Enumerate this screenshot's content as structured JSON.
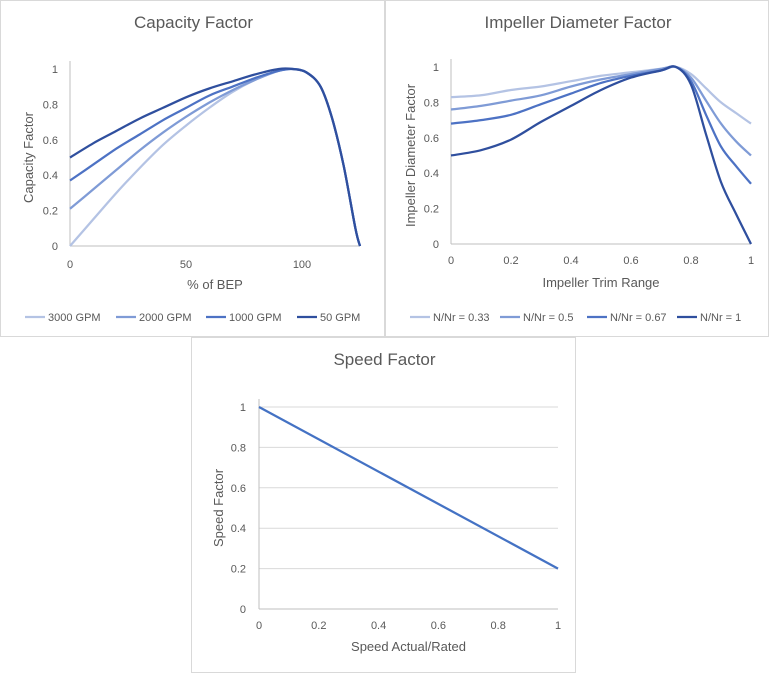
{
  "chart_data": [
    {
      "id": "capacity",
      "type": "line",
      "title": "Capacity Factor",
      "xlabel": "% of BEP",
      "ylabel": "Capacity Factor",
      "xlim": [
        0,
        125
      ],
      "ylim": [
        0,
        1
      ],
      "x_ticks": [
        0,
        50,
        100
      ],
      "y_ticks": [
        0,
        0.2,
        0.4,
        0.6,
        0.8,
        1
      ],
      "y_tick_labels": [
        "0",
        "0.2",
        "0.4",
        "0.6",
        "0.8",
        "1"
      ],
      "x_tick_labels": [
        "0",
        "50",
        "100"
      ],
      "grid": false,
      "legend": "bottom",
      "series": [
        {
          "name": "3000 GPM",
          "color": "#b4c3e4",
          "points": [
            [
              0,
              0
            ],
            [
              10,
              0.15
            ],
            [
              20,
              0.3
            ],
            [
              30,
              0.44
            ],
            [
              40,
              0.57
            ],
            [
              50,
              0.68
            ],
            [
              60,
              0.78
            ],
            [
              70,
              0.87
            ],
            [
              80,
              0.94
            ],
            [
              90,
              0.99
            ],
            [
              96,
              1.0
            ],
            [
              102,
              0.98
            ],
            [
              108,
              0.9
            ],
            [
              113,
              0.72
            ],
            [
              118,
              0.45
            ],
            [
              123,
              0.1
            ],
            [
              125,
              0
            ]
          ]
        },
        {
          "name": "2000 GPM",
          "color": "#7f9bd6",
          "points": [
            [
              0,
              0.21
            ],
            [
              10,
              0.32
            ],
            [
              20,
              0.43
            ],
            [
              30,
              0.54
            ],
            [
              40,
              0.64
            ],
            [
              50,
              0.73
            ],
            [
              60,
              0.81
            ],
            [
              70,
              0.88
            ],
            [
              80,
              0.94
            ],
            [
              90,
              0.99
            ],
            [
              96,
              1.0
            ],
            [
              102,
              0.98
            ],
            [
              108,
              0.9
            ],
            [
              113,
              0.72
            ],
            [
              118,
              0.45
            ],
            [
              123,
              0.1
            ],
            [
              125,
              0
            ]
          ]
        },
        {
          "name": "1000 GPM",
          "color": "#4d72c4",
          "points": [
            [
              0,
              0.37
            ],
            [
              10,
              0.46
            ],
            [
              20,
              0.55
            ],
            [
              30,
              0.63
            ],
            [
              40,
              0.71
            ],
            [
              50,
              0.78
            ],
            [
              60,
              0.85
            ],
            [
              70,
              0.9
            ],
            [
              80,
              0.95
            ],
            [
              90,
              0.99
            ],
            [
              96,
              1.0
            ],
            [
              102,
              0.98
            ],
            [
              108,
              0.9
            ],
            [
              113,
              0.72
            ],
            [
              118,
              0.45
            ],
            [
              123,
              0.1
            ],
            [
              125,
              0
            ]
          ]
        },
        {
          "name": "50 GPM",
          "color": "#2f4f9e",
          "points": [
            [
              0,
              0.5
            ],
            [
              10,
              0.58
            ],
            [
              20,
              0.65
            ],
            [
              30,
              0.72
            ],
            [
              40,
              0.78
            ],
            [
              50,
              0.84
            ],
            [
              60,
              0.89
            ],
            [
              70,
              0.93
            ],
            [
              80,
              0.97
            ],
            [
              90,
              1.0
            ],
            [
              96,
              1.0
            ],
            [
              102,
              0.98
            ],
            [
              108,
              0.9
            ],
            [
              113,
              0.72
            ],
            [
              118,
              0.45
            ],
            [
              123,
              0.1
            ],
            [
              125,
              0
            ]
          ]
        }
      ]
    },
    {
      "id": "impeller",
      "type": "line",
      "title": "Impeller Diameter Factor",
      "xlabel": "Impeller Trim Range",
      "ylabel": "Impeller Diameter Factor",
      "xlim": [
        0,
        1
      ],
      "ylim": [
        0,
        1
      ],
      "x_ticks": [
        0,
        0.2,
        0.4,
        0.6,
        0.8,
        1
      ],
      "x_tick_labels": [
        "0",
        "0.2",
        "0.4",
        "0.6",
        "0.8",
        "1"
      ],
      "y_ticks": [
        0,
        0.2,
        0.4,
        0.6,
        0.8,
        1
      ],
      "y_tick_labels": [
        "0",
        "0.2",
        "0.4",
        "0.6",
        "0.8",
        "1"
      ],
      "grid": false,
      "legend": "bottom",
      "series": [
        {
          "name": "N/Nr = 0.33",
          "color": "#b4c3e4",
          "points": [
            [
              0,
              0.83
            ],
            [
              0.1,
              0.84
            ],
            [
              0.2,
              0.87
            ],
            [
              0.3,
              0.89
            ],
            [
              0.4,
              0.92
            ],
            [
              0.5,
              0.95
            ],
            [
              0.6,
              0.97
            ],
            [
              0.7,
              0.99
            ],
            [
              0.75,
              1.0
            ],
            [
              0.8,
              0.96
            ],
            [
              0.85,
              0.88
            ],
            [
              0.9,
              0.8
            ],
            [
              0.95,
              0.74
            ],
            [
              1,
              0.68
            ]
          ]
        },
        {
          "name": "N/Nr = 0.5",
          "color": "#7f9bd6",
          "points": [
            [
              0,
              0.76
            ],
            [
              0.1,
              0.78
            ],
            [
              0.2,
              0.81
            ],
            [
              0.3,
              0.84
            ],
            [
              0.4,
              0.89
            ],
            [
              0.5,
              0.93
            ],
            [
              0.6,
              0.96
            ],
            [
              0.7,
              0.99
            ],
            [
              0.75,
              1.0
            ],
            [
              0.8,
              0.94
            ],
            [
              0.85,
              0.81
            ],
            [
              0.9,
              0.68
            ],
            [
              0.95,
              0.58
            ],
            [
              1,
              0.5
            ]
          ]
        },
        {
          "name": "N/Nr = 0.67",
          "color": "#4d72c4",
          "points": [
            [
              0,
              0.68
            ],
            [
              0.1,
              0.7
            ],
            [
              0.2,
              0.73
            ],
            [
              0.3,
              0.79
            ],
            [
              0.4,
              0.85
            ],
            [
              0.5,
              0.91
            ],
            [
              0.6,
              0.95
            ],
            [
              0.7,
              0.98
            ],
            [
              0.75,
              1.0
            ],
            [
              0.8,
              0.92
            ],
            [
              0.85,
              0.73
            ],
            [
              0.9,
              0.55
            ],
            [
              0.95,
              0.44
            ],
            [
              1,
              0.34
            ]
          ]
        },
        {
          "name": "N/Nr = 1",
          "color": "#2f4f9e",
          "points": [
            [
              0,
              0.5
            ],
            [
              0.1,
              0.53
            ],
            [
              0.2,
              0.59
            ],
            [
              0.3,
              0.69
            ],
            [
              0.4,
              0.78
            ],
            [
              0.5,
              0.87
            ],
            [
              0.6,
              0.94
            ],
            [
              0.7,
              0.98
            ],
            [
              0.75,
              1.0
            ],
            [
              0.8,
              0.9
            ],
            [
              0.85,
              0.62
            ],
            [
              0.9,
              0.35
            ],
            [
              0.95,
              0.17
            ],
            [
              1,
              0
            ]
          ]
        }
      ]
    },
    {
      "id": "speed",
      "type": "line",
      "title": "Speed Factor",
      "xlabel": "Speed Actual/Rated",
      "ylabel": "Speed Factor",
      "xlim": [
        0,
        1
      ],
      "ylim": [
        0,
        1
      ],
      "x_ticks": [
        0,
        0.2,
        0.4,
        0.6,
        0.8,
        1
      ],
      "x_tick_labels": [
        "0",
        "0.2",
        "0.4",
        "0.6",
        "0.8",
        "1"
      ],
      "y_ticks": [
        0,
        0.2,
        0.4,
        0.6,
        0.8,
        1
      ],
      "y_tick_labels": [
        "0",
        "0.2",
        "0.4",
        "0.6",
        "0.8",
        "1"
      ],
      "grid": true,
      "legend": "none",
      "series": [
        {
          "name": "",
          "color": "#4472c4",
          "points": [
            [
              0,
              1
            ],
            [
              1,
              0.2
            ]
          ]
        }
      ]
    }
  ]
}
